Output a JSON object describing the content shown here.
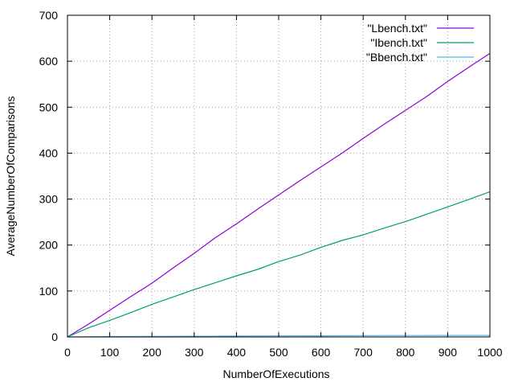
{
  "chart_data": {
    "type": "line",
    "xlabel": "NumberOfExecutions",
    "ylabel": "AverageNumberOfComparisons",
    "xlim": [
      0,
      1000
    ],
    "ylim": [
      0,
      700
    ],
    "xticks": [
      0,
      100,
      200,
      300,
      400,
      500,
      600,
      700,
      800,
      900,
      1000
    ],
    "yticks": [
      0,
      100,
      200,
      300,
      400,
      500,
      600,
      700
    ],
    "grid": true,
    "legend_position": "top-right",
    "series": [
      {
        "name": "\"Lbench.txt\"",
        "color": "#9400d3",
        "x": [
          0,
          50,
          100,
          150,
          200,
          250,
          300,
          350,
          400,
          450,
          500,
          550,
          600,
          650,
          700,
          750,
          800,
          850,
          900,
          950,
          1000
        ],
        "y": [
          0,
          28,
          58,
          88,
          117,
          150,
          182,
          216,
          246,
          278,
          309,
          340,
          370,
          400,
          432,
          463,
          493,
          523,
          556,
          587,
          617
        ]
      },
      {
        "name": "\"Ibench.txt\"",
        "color": "#009e73",
        "x": [
          0,
          50,
          100,
          150,
          200,
          250,
          300,
          350,
          400,
          450,
          500,
          550,
          600,
          650,
          700,
          750,
          800,
          850,
          900,
          950,
          1000
        ],
        "y": [
          0,
          20,
          36,
          53,
          71,
          87,
          103,
          118,
          133,
          147,
          164,
          178,
          195,
          210,
          222,
          237,
          251,
          267,
          283,
          299,
          316
        ]
      },
      {
        "name": "\"Bbench.txt\"",
        "color": "#56b4e9",
        "x": [
          0,
          100,
          200,
          300,
          400,
          500,
          600,
          700,
          800,
          900,
          1000
        ],
        "y": [
          0,
          0.8,
          1.2,
          1.5,
          2,
          2.2,
          2.4,
          3,
          3.2,
          3.3,
          3.4
        ]
      }
    ]
  }
}
